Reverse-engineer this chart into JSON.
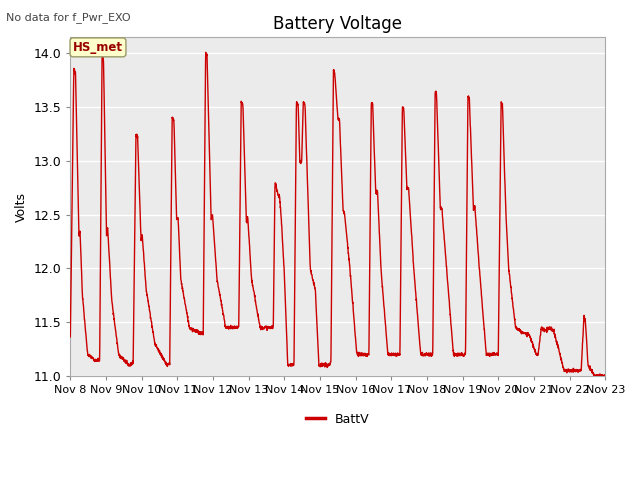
{
  "title": "Battery Voltage",
  "subtitle": "No data for f_Pwr_EXO",
  "ylabel": "Volts",
  "ylim": [
    11.0,
    14.15
  ],
  "yticks": [
    11.0,
    11.5,
    12.0,
    12.5,
    13.0,
    13.5,
    14.0
  ],
  "xtick_labels": [
    "Nov 8",
    "Nov 9",
    "Nov 10",
    "Nov 11",
    "Nov 12",
    "Nov 13",
    "Nov 14",
    "Nov 15",
    "Nov 16",
    "Nov 17",
    "Nov 18",
    "Nov 19",
    "Nov 20",
    "Nov 21",
    "Nov 22",
    "Nov 23"
  ],
  "line_color": "#cc0000",
  "line_width": 1.0,
  "legend_label": "BattV",
  "legend_line_color": "#cc0000",
  "bg_color": "#ffffff",
  "plot_bg_color": "#ebebeb",
  "annotation_label": "HS_met",
  "annotation_color": "#990000",
  "annotation_bg": "#ffffcc",
  "annotation_border": "#999966",
  "title_fontsize": 12,
  "axis_fontsize": 8,
  "subtitle_fontsize": 8,
  "legend_fontsize": 9,
  "num_days": 16
}
